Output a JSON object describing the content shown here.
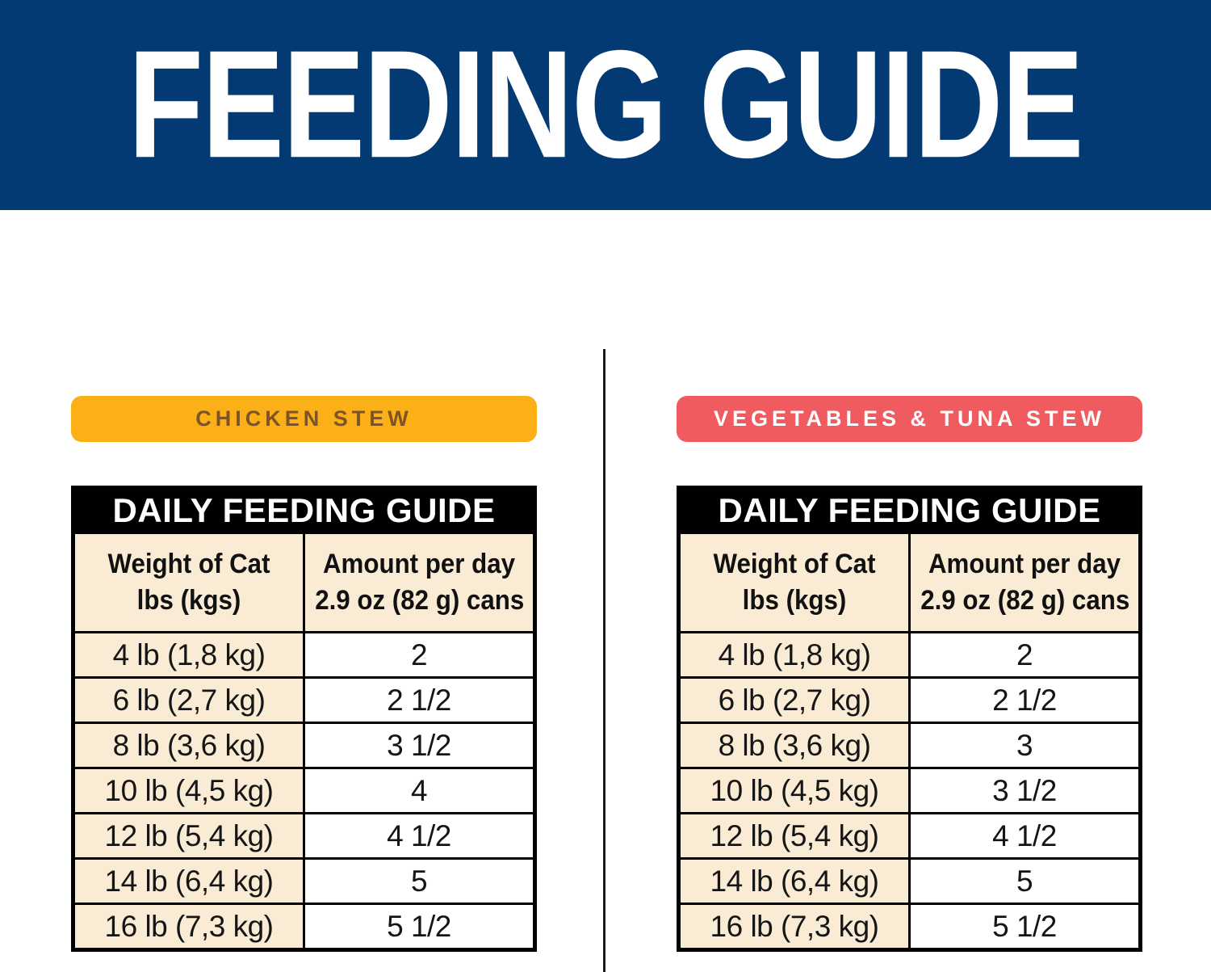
{
  "colors": {
    "navy": "#043A73",
    "cream": "#FAECD4",
    "divider": "#1A1A1A"
  },
  "banner": {
    "title": "FEEDING GUIDE",
    "bg": "#043A73",
    "text_color": "#FFFFFF"
  },
  "columns": [
    {
      "badge": {
        "label": "CHICKEN STEW",
        "bg": "#FBB017",
        "text_color": "#7E5427"
      },
      "table": {
        "title": "DAILY FEEDING GUIDE",
        "headers": {
          "weight_line1": "Weight of Cat",
          "weight_line2": "lbs (kgs)",
          "amount_line1": "Amount per day",
          "amount_line2": "2.9 oz (82 g) cans"
        },
        "rows": [
          {
            "weight": "4 lb (1,8 kg)",
            "amount": "2"
          },
          {
            "weight": "6 lb (2,7 kg)",
            "amount": "2 1/2"
          },
          {
            "weight": "8 lb (3,6 kg)",
            "amount": "3 1/2"
          },
          {
            "weight": "10 lb (4,5 kg)",
            "amount": "4"
          },
          {
            "weight": "12 lb (5,4 kg)",
            "amount": "4 1/2"
          },
          {
            "weight": "14 lb (6,4 kg)",
            "amount": "5"
          },
          {
            "weight": "16 lb (7,3 kg)",
            "amount": "5 1/2"
          }
        ]
      }
    },
    {
      "badge": {
        "label": "VEGETABLES & TUNA STEW",
        "bg": "#F05B5F",
        "text_color": "#FFFFFF"
      },
      "table": {
        "title": "DAILY FEEDING GUIDE",
        "headers": {
          "weight_line1": "Weight of Cat",
          "weight_line2": "lbs (kgs)",
          "amount_line1": "Amount per day",
          "amount_line2": "2.9 oz (82 g) cans"
        },
        "rows": [
          {
            "weight": "4 lb (1,8 kg)",
            "amount": "2"
          },
          {
            "weight": "6 lb (2,7 kg)",
            "amount": "2 1/2"
          },
          {
            "weight": "8 lb (3,6 kg)",
            "amount": "3"
          },
          {
            "weight": "10 lb (4,5 kg)",
            "amount": "3 1/2"
          },
          {
            "weight": "12 lb (5,4 kg)",
            "amount": "4 1/2"
          },
          {
            "weight": "14 lb (6,4 kg)",
            "amount": "5"
          },
          {
            "weight": "16 lb (7,3 kg)",
            "amount": "5 1/2"
          }
        ]
      }
    }
  ]
}
